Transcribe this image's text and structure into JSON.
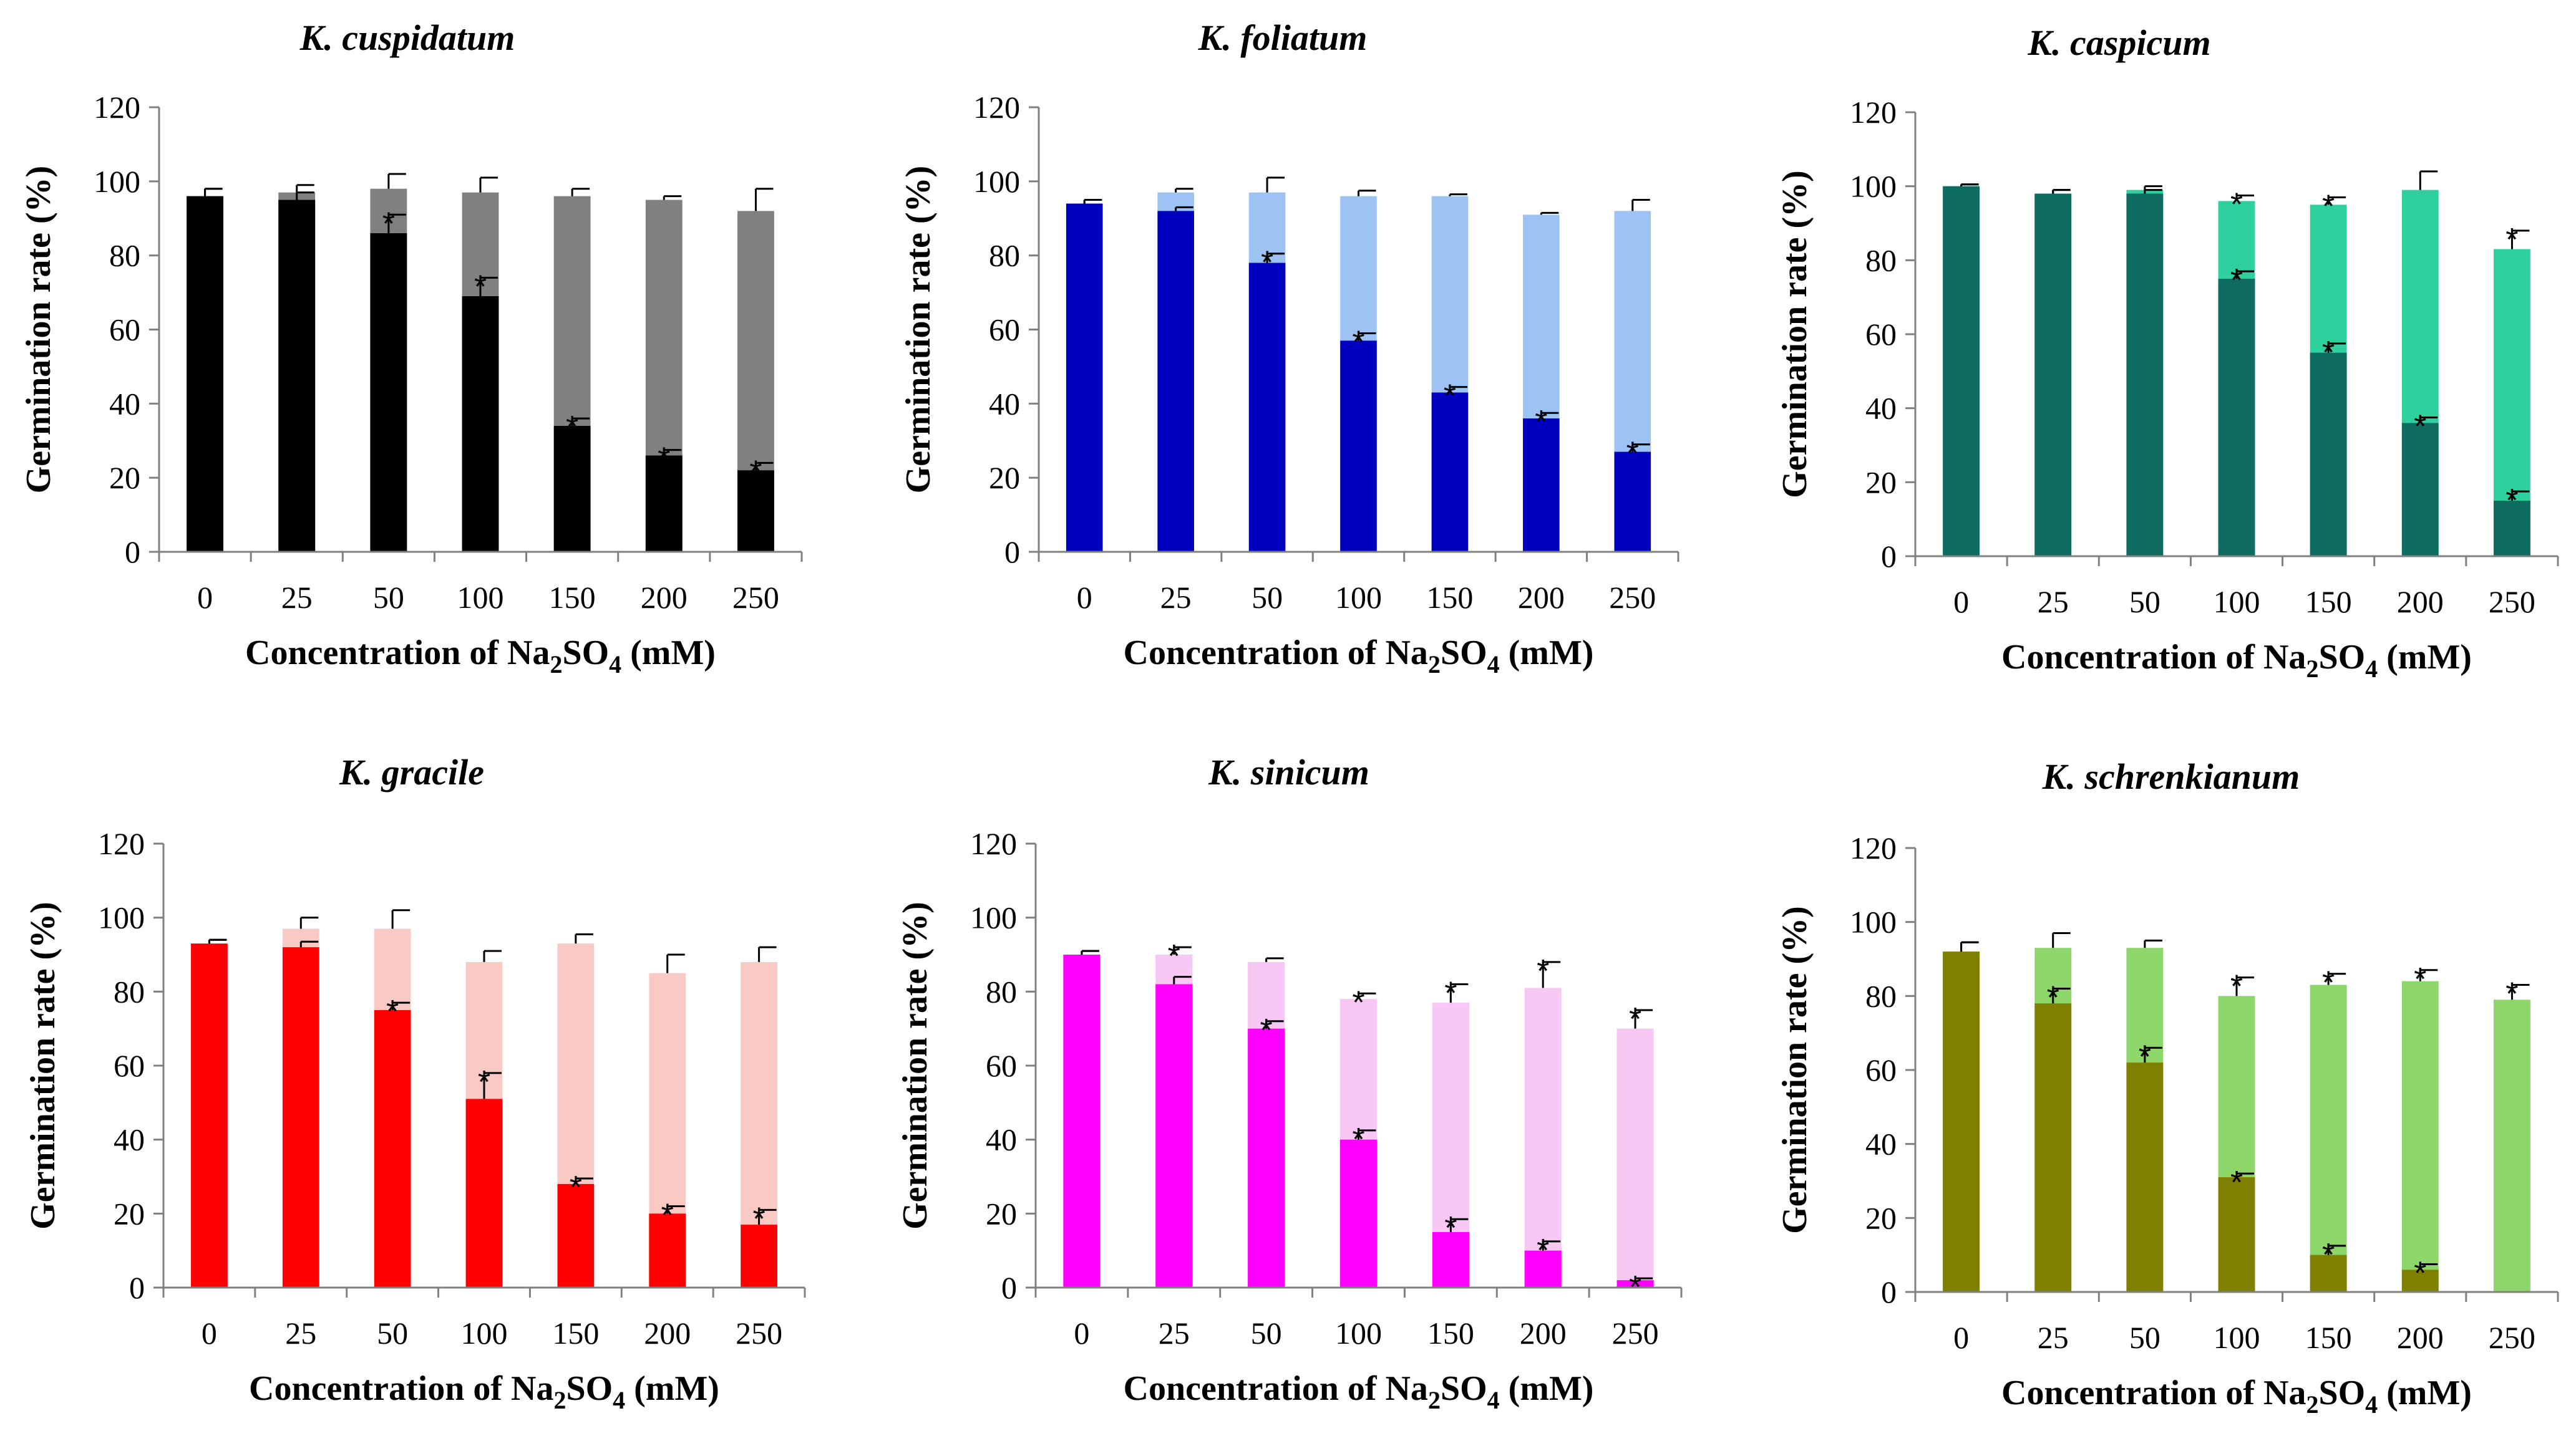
{
  "chart_data": [
    {
      "type": "bar",
      "stacked": "overlay",
      "title": "K. cuspidatum",
      "xlabel": "Concentration of Na2SO4 (mM)",
      "ylabel": "Germination rate (%)",
      "ylim": [
        0,
        120
      ],
      "yticks": [
        "0",
        "20",
        "40",
        "60",
        "80",
        "100",
        "120"
      ],
      "categories": [
        "0",
        "25",
        "50",
        "100",
        "150",
        "200",
        "250"
      ],
      "colors": {
        "front": "#000000",
        "back": "#808080"
      },
      "series": [
        {
          "name": "front",
          "values": [
            96,
            95,
            86,
            69,
            34,
            26,
            22
          ],
          "errors": [
            2,
            2,
            5,
            5,
            2,
            1.5,
            2
          ],
          "stars": [
            false,
            false,
            true,
            true,
            true,
            true,
            true
          ]
        },
        {
          "name": "back",
          "values": [
            96,
            97,
            98,
            97,
            96,
            95,
            92
          ],
          "errors": [
            2,
            2,
            4,
            4,
            2,
            1,
            6
          ],
          "stars": [
            false,
            false,
            false,
            false,
            false,
            false,
            false
          ]
        }
      ]
    },
    {
      "type": "bar",
      "stacked": "overlay",
      "title": "K. foliatum",
      "xlabel": "Concentration of Na2SO4 (mM)",
      "ylabel": "Germination rate (%)",
      "ylim": [
        0,
        120
      ],
      "yticks": [
        "0",
        "20",
        "40",
        "60",
        "80",
        "100",
        "120"
      ],
      "categories": [
        "0",
        "25",
        "50",
        "100",
        "150",
        "200",
        "250"
      ],
      "colors": {
        "front": "#0000BF",
        "back": "#9DC3F5"
      },
      "series": [
        {
          "name": "front",
          "values": [
            94,
            92,
            78,
            57,
            43,
            36,
            27
          ],
          "errors": [
            1,
            1,
            2.5,
            2,
            1.5,
            1.5,
            2
          ],
          "stars": [
            false,
            false,
            true,
            true,
            true,
            true,
            true
          ]
        },
        {
          "name": "back",
          "values": [
            94,
            97,
            97,
            96,
            96,
            91,
            92
          ],
          "errors": [
            1,
            1,
            4,
            1.5,
            0.5,
            0.5,
            3
          ],
          "stars": [
            false,
            false,
            false,
            false,
            false,
            false,
            false
          ]
        }
      ]
    },
    {
      "type": "bar",
      "stacked": "overlay",
      "title": "K. caspicum",
      "xlabel": "Concentration of Na2SO4 (mM)",
      "ylabel": "Germination rate (%)",
      "ylim": [
        0,
        120
      ],
      "yticks": [
        "0",
        "20",
        "40",
        "60",
        "80",
        "100",
        "120"
      ],
      "categories": [
        "0",
        "25",
        "50",
        "100",
        "150",
        "200",
        "250"
      ],
      "colors": {
        "front": "#0E6B60",
        "back": "#2ED19E"
      },
      "series": [
        {
          "name": "front",
          "values": [
            100,
            98,
            98,
            75,
            55,
            36,
            15
          ],
          "errors": [
            0.5,
            1,
            1,
            2,
            2.5,
            1.5,
            2.5
          ],
          "stars": [
            false,
            false,
            false,
            true,
            true,
            true,
            true
          ]
        },
        {
          "name": "back",
          "values": [
            100,
            98,
            99,
            96,
            95,
            99,
            83
          ],
          "errors": [
            0.5,
            1,
            1,
            1.5,
            2,
            5,
            5
          ],
          "stars": [
            false,
            false,
            false,
            true,
            true,
            false,
            true
          ]
        }
      ]
    },
    {
      "type": "bar",
      "stacked": "overlay",
      "title": "K. gracile",
      "xlabel": "Concentration of Na2SO4 (mM)",
      "ylabel": "Germination rate (%)",
      "ylim": [
        0,
        120
      ],
      "yticks": [
        "0",
        "20",
        "40",
        "60",
        "80",
        "100",
        "120"
      ],
      "categories": [
        "0",
        "25",
        "50",
        "100",
        "150",
        "200",
        "250"
      ],
      "colors": {
        "front": "#FF0000",
        "back": "#F9C9C4"
      },
      "series": [
        {
          "name": "front",
          "values": [
            93,
            92,
            75,
            51,
            28,
            20,
            17
          ],
          "errors": [
            1,
            1.5,
            2,
            7,
            1.5,
            2,
            4
          ],
          "stars": [
            false,
            false,
            true,
            true,
            true,
            true,
            true
          ]
        },
        {
          "name": "back",
          "values": [
            93,
            97,
            97,
            88,
            93,
            85,
            88
          ],
          "errors": [
            1,
            3,
            5,
            3,
            2.5,
            5,
            4
          ],
          "stars": [
            false,
            false,
            false,
            false,
            false,
            false,
            false
          ]
        }
      ]
    },
    {
      "type": "bar",
      "stacked": "overlay",
      "title": "K. sinicum",
      "xlabel": "Concentration of Na2SO4 (mM)",
      "ylabel": "Germination rate (%)",
      "ylim": [
        0,
        120
      ],
      "yticks": [
        "0",
        "20",
        "40",
        "60",
        "80",
        "100",
        "120"
      ],
      "categories": [
        "0",
        "25",
        "50",
        "100",
        "150",
        "200",
        "250"
      ],
      "colors": {
        "front": "#FF00FF",
        "back": "#F8C8F4"
      },
      "series": [
        {
          "name": "front",
          "values": [
            90,
            82,
            70,
            40,
            15,
            10,
            2
          ],
          "errors": [
            1,
            2,
            2,
            2.5,
            3.5,
            2.5,
            0.5
          ],
          "stars": [
            false,
            false,
            true,
            true,
            true,
            true,
            true
          ]
        },
        {
          "name": "back",
          "values": [
            90,
            90,
            88,
            78,
            77,
            81,
            70
          ],
          "errors": [
            1,
            2,
            1,
            1.5,
            5,
            7,
            5
          ],
          "stars": [
            false,
            true,
            false,
            true,
            true,
            true,
            true
          ]
        }
      ]
    },
    {
      "type": "bar",
      "stacked": "overlay",
      "title": "K. schrenkianum",
      "xlabel": "Concentration of Na2SO4 (mM)",
      "ylabel": "Germination rate (%)",
      "ylim": [
        0,
        120
      ],
      "yticks": [
        "0",
        "20",
        "40",
        "60",
        "80",
        "100",
        "120"
      ],
      "categories": [
        "0",
        "25",
        "50",
        "100",
        "150",
        "200",
        "250"
      ],
      "colors": {
        "front": "#7F7F00",
        "back": "#8CD66A"
      },
      "series": [
        {
          "name": "front",
          "values": [
            92,
            78,
            62,
            31,
            10,
            6,
            0
          ],
          "errors": [
            2.5,
            4,
            4,
            1,
            2.5,
            1.5,
            0
          ],
          "stars": [
            false,
            true,
            true,
            true,
            true,
            true,
            false
          ]
        },
        {
          "name": "back",
          "values": [
            92,
            93,
            93,
            80,
            83,
            84,
            79
          ],
          "errors": [
            2.5,
            4,
            2,
            5,
            3,
            3,
            4
          ],
          "stars": [
            false,
            false,
            false,
            true,
            true,
            true,
            true
          ]
        }
      ]
    }
  ],
  "labels": {
    "star": "*",
    "xlabel_parts": {
      "prefix": "Concentration of Na",
      "sub1": "2",
      "mid": "SO",
      "sub2": "4",
      "suffix": " (mM)"
    }
  }
}
